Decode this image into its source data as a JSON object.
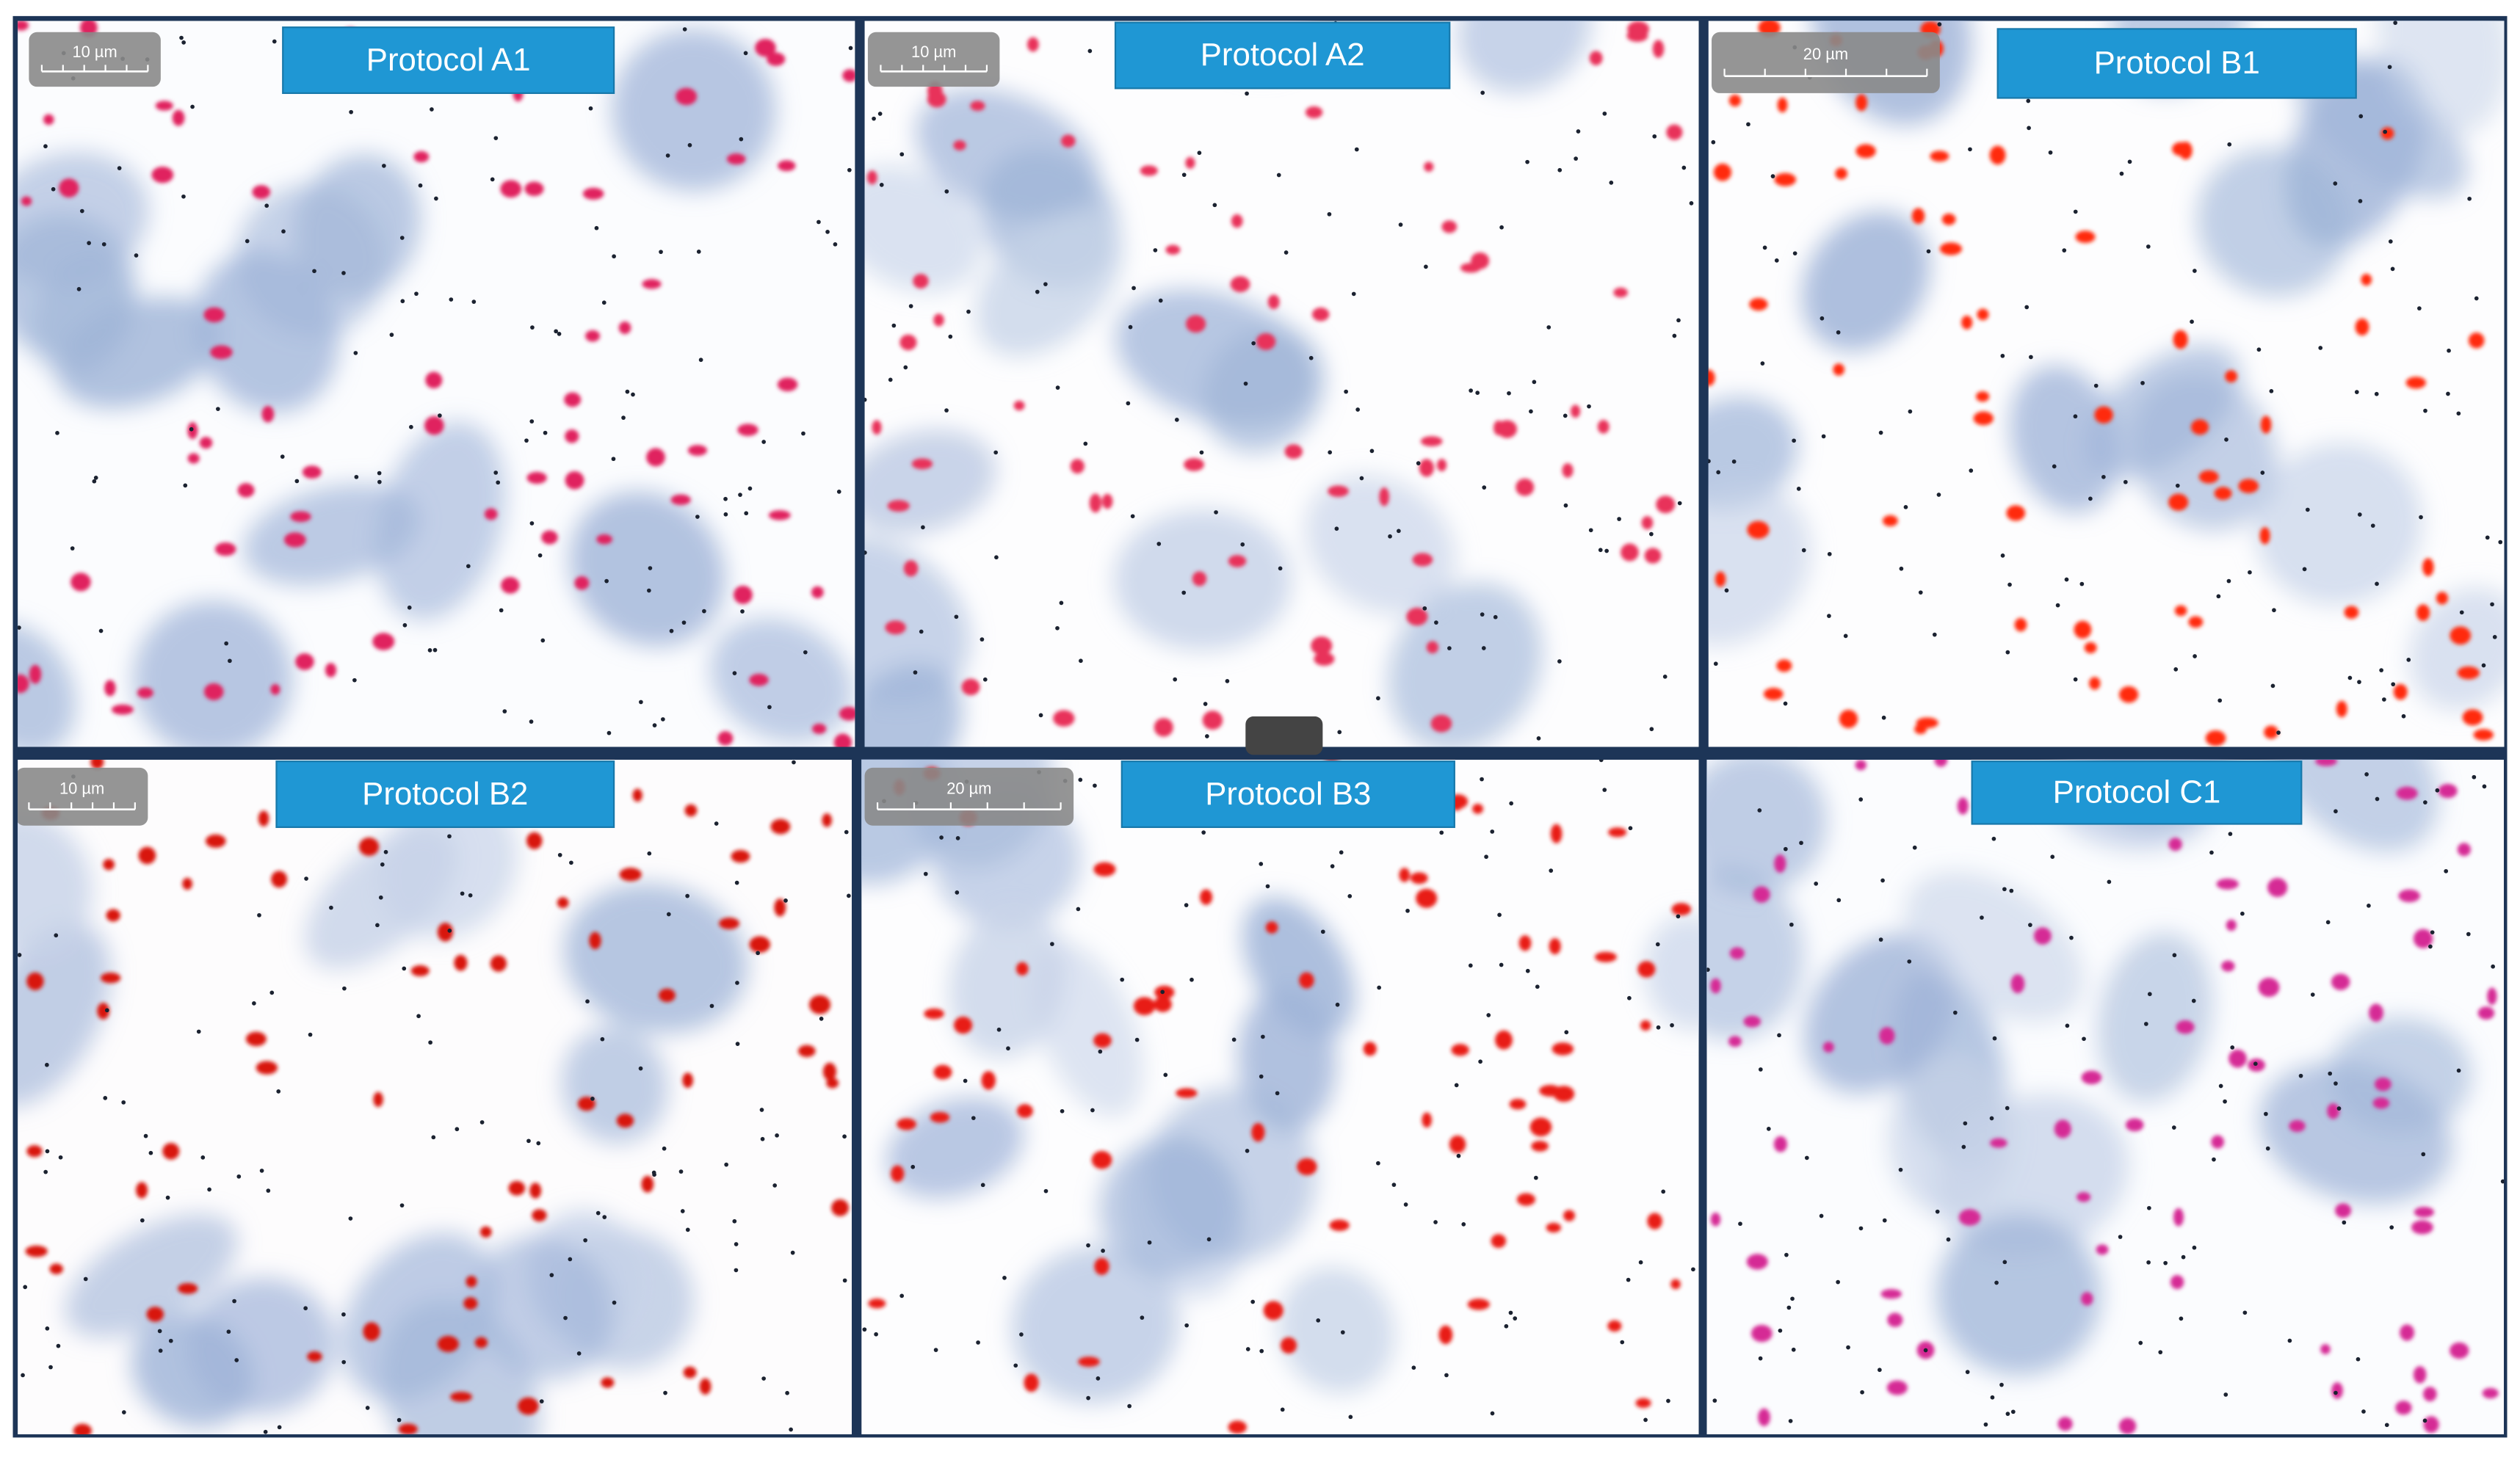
{
  "panels": [
    {
      "label": "Protocol A1",
      "scale_bar": "10 µm"
    },
    {
      "label": "Protocol A2",
      "scale_bar": "10 µm"
    },
    {
      "label": "Protocol B1",
      "scale_bar": "20 µm"
    },
    {
      "label": "Protocol B2",
      "scale_bar": "10 µm"
    },
    {
      "label": "Protocol B3",
      "scale_bar": "20 µm"
    },
    {
      "label": "Protocol C1"
    }
  ]
}
